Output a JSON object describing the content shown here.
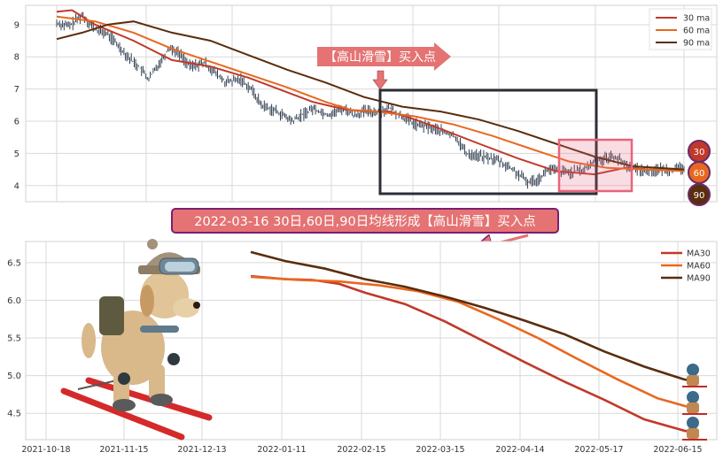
{
  "colors": {
    "ma30": "#c0392b",
    "ma60": "#e8681f",
    "ma90": "#5a2d0c",
    "price": "#2f3e50",
    "grid": "#d9d9d9",
    "panel_bg": "#ffffff",
    "badge_fill": "#e57373",
    "badge_border": "#7b1f72",
    "box_dark": "#2b2f36",
    "box_pink": "#e8647a"
  },
  "annotations": {
    "top_badge": "【高山滑雪】买入点",
    "middle_badge": "2022-03-16 30日,60日,90日均线形成【高山滑雪】买入点",
    "circle_30": "30",
    "circle_60": "60",
    "circle_90": "90"
  },
  "chart_data": [
    {
      "type": "line",
      "ylim": [
        3.5,
        9.6
      ],
      "yticks": [
        4,
        5,
        6,
        7,
        8,
        9
      ],
      "legend": {
        "placement": "top-right",
        "entries": [
          "30 ma",
          "60 ma",
          "90 ma"
        ]
      },
      "grid": true,
      "x_range": [
        "2021-10-18",
        "2022-06-20"
      ],
      "x_days": [
        0,
        245
      ],
      "price_anchors": [
        [
          0,
          9.05
        ],
        [
          5,
          8.95
        ],
        [
          10,
          9.3
        ],
        [
          15,
          8.85
        ],
        [
          20,
          8.7
        ],
        [
          28,
          8.0
        ],
        [
          32,
          7.7
        ],
        [
          36,
          7.3
        ],
        [
          40,
          7.8
        ],
        [
          44,
          8.3
        ],
        [
          48,
          8.1
        ],
        [
          52,
          7.7
        ],
        [
          58,
          7.8
        ],
        [
          62,
          7.5
        ],
        [
          66,
          7.2
        ],
        [
          72,
          7.3
        ],
        [
          76,
          7.0
        ],
        [
          80,
          6.5
        ],
        [
          86,
          6.3
        ],
        [
          92,
          6.0
        ],
        [
          96,
          6.2
        ],
        [
          100,
          6.4
        ],
        [
          106,
          6.2
        ],
        [
          112,
          6.4
        ],
        [
          116,
          6.2
        ],
        [
          120,
          6.3
        ],
        [
          126,
          6.3
        ],
        [
          130,
          6.4
        ],
        [
          136,
          6.1
        ],
        [
          140,
          5.9
        ],
        [
          146,
          5.8
        ],
        [
          150,
          5.7
        ],
        [
          156,
          5.5
        ],
        [
          160,
          5.0
        ],
        [
          166,
          4.9
        ],
        [
          172,
          4.8
        ],
        [
          178,
          4.5
        ],
        [
          184,
          4.1
        ],
        [
          188,
          4.2
        ],
        [
          192,
          4.5
        ],
        [
          200,
          4.4
        ],
        [
          206,
          4.5
        ],
        [
          210,
          4.75
        ],
        [
          214,
          4.85
        ],
        [
          218,
          4.9
        ],
        [
          224,
          4.55
        ],
        [
          230,
          4.45
        ],
        [
          236,
          4.5
        ],
        [
          242,
          4.5
        ],
        [
          245,
          4.55
        ]
      ],
      "series": [
        {
          "name": "30 ma",
          "points": [
            [
              0,
              9.4
            ],
            [
              6,
              9.45
            ],
            [
              15,
              9.0
            ],
            [
              30,
              8.5
            ],
            [
              45,
              7.9
            ],
            [
              60,
              7.7
            ],
            [
              75,
              7.35
            ],
            [
              90,
              6.9
            ],
            [
              100,
              6.6
            ],
            [
              108,
              6.45
            ],
            [
              114,
              6.35
            ],
            [
              122,
              6.3
            ],
            [
              130,
              6.3
            ],
            [
              140,
              6.05
            ],
            [
              152,
              5.7
            ],
            [
              165,
              5.3
            ],
            [
              180,
              4.85
            ],
            [
              195,
              4.45
            ],
            [
              210,
              4.35
            ],
            [
              222,
              4.55
            ],
            [
              235,
              4.48
            ],
            [
              245,
              4.48
            ]
          ]
        },
        {
          "name": "60 ma",
          "points": [
            [
              0,
              9.25
            ],
            [
              15,
              9.1
            ],
            [
              30,
              8.75
            ],
            [
              45,
              8.25
            ],
            [
              60,
              7.85
            ],
            [
              75,
              7.45
            ],
            [
              90,
              7.05
            ],
            [
              105,
              6.6
            ],
            [
              115,
              6.35
            ],
            [
              125,
              6.3
            ],
            [
              140,
              6.15
            ],
            [
              155,
              5.9
            ],
            [
              170,
              5.55
            ],
            [
              185,
              5.15
            ],
            [
              200,
              4.75
            ],
            [
              215,
              4.55
            ],
            [
              230,
              4.5
            ],
            [
              245,
              4.45
            ]
          ]
        },
        {
          "name": "90 ma",
          "points": [
            [
              0,
              8.55
            ],
            [
              10,
              8.75
            ],
            [
              20,
              9.0
            ],
            [
              30,
              9.1
            ],
            [
              45,
              8.75
            ],
            [
              60,
              8.5
            ],
            [
              75,
              8.05
            ],
            [
              90,
              7.6
            ],
            [
              105,
              7.2
            ],
            [
              120,
              6.75
            ],
            [
              135,
              6.45
            ],
            [
              150,
              6.3
            ],
            [
              165,
              6.05
            ],
            [
              180,
              5.7
            ],
            [
              195,
              5.3
            ],
            [
              210,
              4.9
            ],
            [
              225,
              4.6
            ],
            [
              245,
              4.5
            ]
          ]
        }
      ]
    },
    {
      "type": "line",
      "ylim": [
        4.15,
        6.78
      ],
      "yticks": [
        4.5,
        5.0,
        5.5,
        6.0,
        6.5
      ],
      "xticks": [
        "2021-10-18",
        "2021-11-15",
        "2021-12-13",
        "2022-01-11",
        "2022-02-15",
        "2022-03-15",
        "2022-04-14",
        "2022-05-17",
        "2022-06-15"
      ],
      "x_days": [
        0,
        245
      ],
      "legend": {
        "placement": "top-right",
        "entries": [
          "MA30",
          "MA60",
          "MA90"
        ]
      },
      "grid": true,
      "series": [
        {
          "name": "MA30",
          "points": [
            [
              77,
              6.32
            ],
            [
              90,
              6.28
            ],
            [
              100,
              6.27
            ],
            [
              110,
              6.22
            ],
            [
              120,
              6.1
            ],
            [
              135,
              5.95
            ],
            [
              150,
              5.72
            ],
            [
              165,
              5.45
            ],
            [
              180,
              5.18
            ],
            [
              195,
              4.92
            ],
            [
              210,
              4.68
            ],
            [
              225,
              4.42
            ],
            [
              240,
              4.27
            ],
            [
              245,
              4.24
            ]
          ]
        },
        {
          "name": "MA60",
          "points": [
            [
              77,
              6.31
            ],
            [
              95,
              6.27
            ],
            [
              110,
              6.25
            ],
            [
              125,
              6.2
            ],
            [
              140,
              6.12
            ],
            [
              155,
              5.98
            ],
            [
              170,
              5.75
            ],
            [
              185,
              5.5
            ],
            [
              200,
              5.22
            ],
            [
              215,
              4.95
            ],
            [
              230,
              4.7
            ],
            [
              245,
              4.55
            ]
          ]
        },
        {
          "name": "MA90",
          "points": [
            [
              77,
              6.64
            ],
            [
              90,
              6.52
            ],
            [
              105,
              6.42
            ],
            [
              120,
              6.28
            ],
            [
              135,
              6.18
            ],
            [
              150,
              6.05
            ],
            [
              165,
              5.9
            ],
            [
              180,
              5.73
            ],
            [
              195,
              5.55
            ],
            [
              210,
              5.32
            ],
            [
              225,
              5.12
            ],
            [
              240,
              4.95
            ],
            [
              245,
              4.92
            ]
          ]
        }
      ]
    }
  ]
}
